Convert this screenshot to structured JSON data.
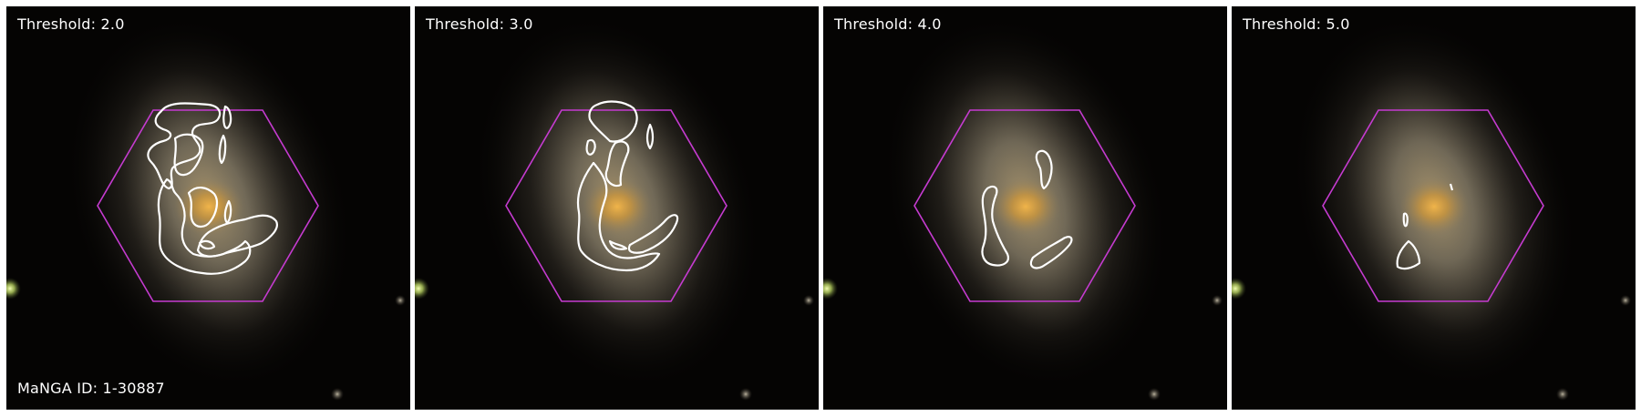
{
  "panels": [
    {
      "threshold_label": "Threshold: 2.0"
    },
    {
      "threshold_label": "Threshold: 3.0"
    },
    {
      "threshold_label": "Threshold: 4.0"
    },
    {
      "threshold_label": "Threshold: 5.0"
    }
  ],
  "galaxy_id_label": "MaNGA ID: 1-30887",
  "colors": {
    "background": "#050403",
    "hexagon": "#c53bd0",
    "contour": "#ffffff",
    "galaxy_core": "#c8943c"
  }
}
